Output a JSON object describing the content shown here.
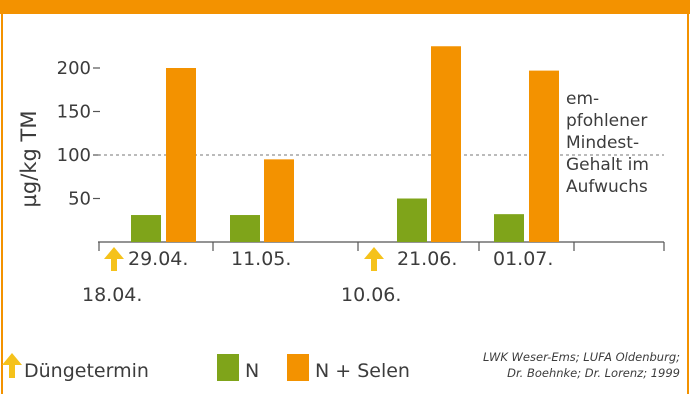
{
  "colors": {
    "frame": "#F39200",
    "n": "#7FA41A",
    "n_selen": "#F39200",
    "arrow": "#F5C21B",
    "text": "#3C3C3C",
    "axis": "#555555"
  },
  "icons": {
    "arrow": "up-arrow-icon"
  },
  "chart_data": {
    "type": "bar",
    "categories": [
      "29.04.",
      "11.05.",
      "21.06.",
      "01.07."
    ],
    "series": [
      {
        "name": "N",
        "values": [
          31,
          31,
          50,
          32
        ]
      },
      {
        "name": "N + Selen",
        "values": [
          200,
          95,
          225,
          197
        ]
      }
    ],
    "ylabel": "µg/kg TM",
    "yticks": [
      50,
      100,
      150,
      200
    ],
    "ylim": [
      0,
      235
    ],
    "reference_line": {
      "value": 100,
      "style": "dashed"
    },
    "reference_label": [
      "em-",
      "pfohlener",
      "Mindest-",
      "Gehalt im",
      "Aufwuchs"
    ],
    "fertilization_dates": [
      "18.04.",
      "10.06."
    ],
    "grid": false,
    "legend_position": "bottom"
  },
  "legend": {
    "arrow_label": "Düngetermin",
    "n_label": "N",
    "n_selen_label": "N + Selen"
  },
  "source_lines": [
    "LWK Weser-Ems; LUFA Oldenburg;",
    "Dr. Boehnke; Dr. Lorenz; 1999"
  ]
}
